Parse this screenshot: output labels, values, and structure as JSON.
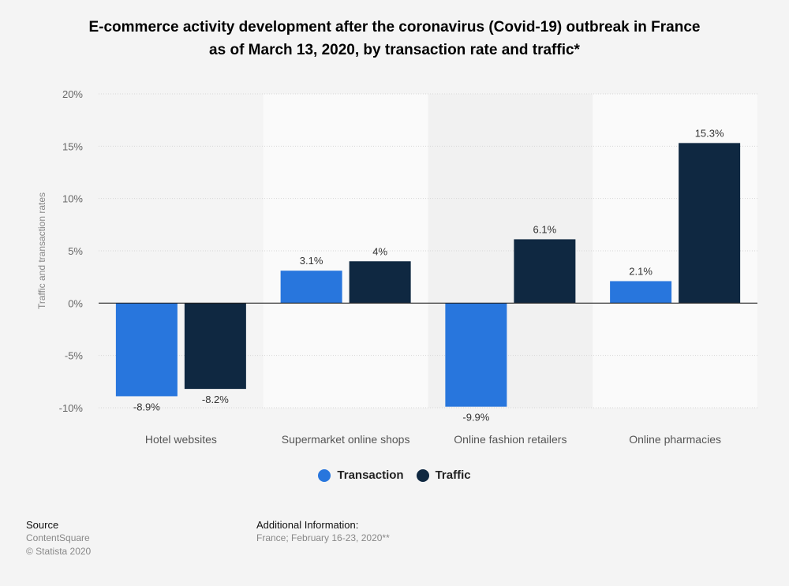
{
  "chart_data": {
    "type": "bar",
    "title": "E-commerce activity development after the coronavirus (Covid-19) outbreak in France as of March 13, 2020, by transaction rate and traffic*",
    "title_lines": [
      "E-commerce activity development after the coronavirus (Covid-19) outbreak in France",
      "as of March 13, 2020, by transaction rate and traffic*"
    ],
    "xlabel": "",
    "ylabel": "Traffic and transaction rates",
    "ylim": [
      -10,
      20
    ],
    "yticks": [
      20,
      15,
      10,
      5,
      0,
      -5,
      -10
    ],
    "ytick_labels": [
      "20%",
      "15%",
      "10%",
      "5%",
      "0%",
      "-5%",
      "-10%"
    ],
    "categories": [
      "Hotel websites",
      "Supermarket online shops",
      "Online fashion retailers",
      "Online pharmacies"
    ],
    "series": [
      {
        "name": "Transaction",
        "color": "#2876dd",
        "values": [
          -8.9,
          3.1,
          -9.9,
          2.1
        ],
        "labels": [
          "-8.9%",
          "3.1%",
          "-9.9%",
          "2.1%"
        ]
      },
      {
        "name": "Traffic",
        "color": "#0f2841",
        "values": [
          -8.2,
          4,
          6.1,
          15.3
        ],
        "labels": [
          "-8.2%",
          "4%",
          "6.1%",
          "15.3%"
        ]
      }
    ],
    "grid": true,
    "legend_position": "bottom"
  },
  "footer": {
    "source_heading": "Source",
    "source_lines": [
      "ContentSquare",
      "© Statista 2020"
    ],
    "additional_heading": "Additional Information:",
    "additional_text": "France; February 16-23, 2020**"
  }
}
